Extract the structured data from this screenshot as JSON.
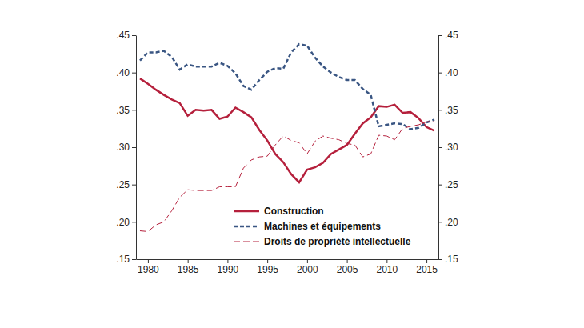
{
  "chart_data": {
    "type": "line",
    "x": [
      1979,
      1980,
      1981,
      1982,
      1983,
      1984,
      1985,
      1986,
      1987,
      1988,
      1989,
      1990,
      1991,
      1992,
      1993,
      1994,
      1995,
      1996,
      1997,
      1998,
      1999,
      2000,
      2001,
      2002,
      2003,
      2004,
      2005,
      2006,
      2007,
      2008,
      2009,
      2010,
      2011,
      2012,
      2013,
      2014,
      2015,
      2016
    ],
    "xlim": [
      1978.5,
      2016.5
    ],
    "xticks": [
      1980,
      1985,
      1990,
      1995,
      2000,
      2005,
      2010,
      2015
    ],
    "ylim": [
      0.15,
      0.45
    ],
    "yticks": [
      {
        "value": 0.15,
        "label": ".15"
      },
      {
        "value": 0.2,
        "label": ".20"
      },
      {
        "value": 0.25,
        "label": ".25"
      },
      {
        "value": 0.3,
        "label": ".30"
      },
      {
        "value": 0.35,
        "label": ".35"
      },
      {
        "value": 0.4,
        "label": ".40"
      },
      {
        "value": 0.45,
        "label": ".45"
      }
    ],
    "y2lim": [
      0.15,
      0.45
    ],
    "y2ticks": [
      {
        "value": 0.15,
        "label": ".15"
      },
      {
        "value": 0.2,
        "label": ".20"
      },
      {
        "value": 0.25,
        "label": ".25"
      },
      {
        "value": 0.3,
        "label": ".30"
      },
      {
        "value": 0.35,
        "label": ".35"
      },
      {
        "value": 0.4,
        "label": ".40"
      },
      {
        "value": 0.45,
        "label": ".45"
      }
    ],
    "legend": "lower right",
    "series": [
      {
        "name": "Construction",
        "color": "#b5203c",
        "line_style": "solid",
        "values": [
          0.392,
          0.385,
          0.377,
          0.37,
          0.364,
          0.359,
          0.342,
          0.35,
          0.349,
          0.35,
          0.338,
          0.341,
          0.353,
          0.347,
          0.34,
          0.323,
          0.309,
          0.291,
          0.28,
          0.264,
          0.253,
          0.27,
          0.273,
          0.279,
          0.291,
          0.297,
          0.303,
          0.318,
          0.332,
          0.34,
          0.355,
          0.354,
          0.357,
          0.346,
          0.347,
          0.339,
          0.327,
          0.322
        ]
      },
      {
        "name": "Machines et équipements",
        "color": "#3a5683",
        "line_style": "dashed",
        "values": [
          0.416,
          0.427,
          0.427,
          0.429,
          0.421,
          0.404,
          0.411,
          0.408,
          0.408,
          0.408,
          0.413,
          0.409,
          0.399,
          0.382,
          0.377,
          0.39,
          0.401,
          0.406,
          0.405,
          0.427,
          0.438,
          0.436,
          0.42,
          0.408,
          0.4,
          0.394,
          0.39,
          0.39,
          0.378,
          0.37,
          0.328,
          0.33,
          0.332,
          0.331,
          0.324,
          0.326,
          0.333,
          0.337
        ]
      },
      {
        "name": "Droits de propriété intellectuelle",
        "color": "#b5203c",
        "line_style": "dashed",
        "values": [
          0.188,
          0.187,
          0.196,
          0.2,
          0.215,
          0.233,
          0.243,
          0.242,
          0.242,
          0.242,
          0.247,
          0.247,
          0.247,
          0.272,
          0.283,
          0.287,
          0.288,
          0.303,
          0.315,
          0.309,
          0.306,
          0.291,
          0.308,
          0.315,
          0.312,
          0.31,
          0.305,
          0.303,
          0.287,
          0.291,
          0.316,
          0.315,
          0.31,
          0.325,
          0.328,
          0.33,
          0.334,
          0.335
        ]
      }
    ]
  }
}
